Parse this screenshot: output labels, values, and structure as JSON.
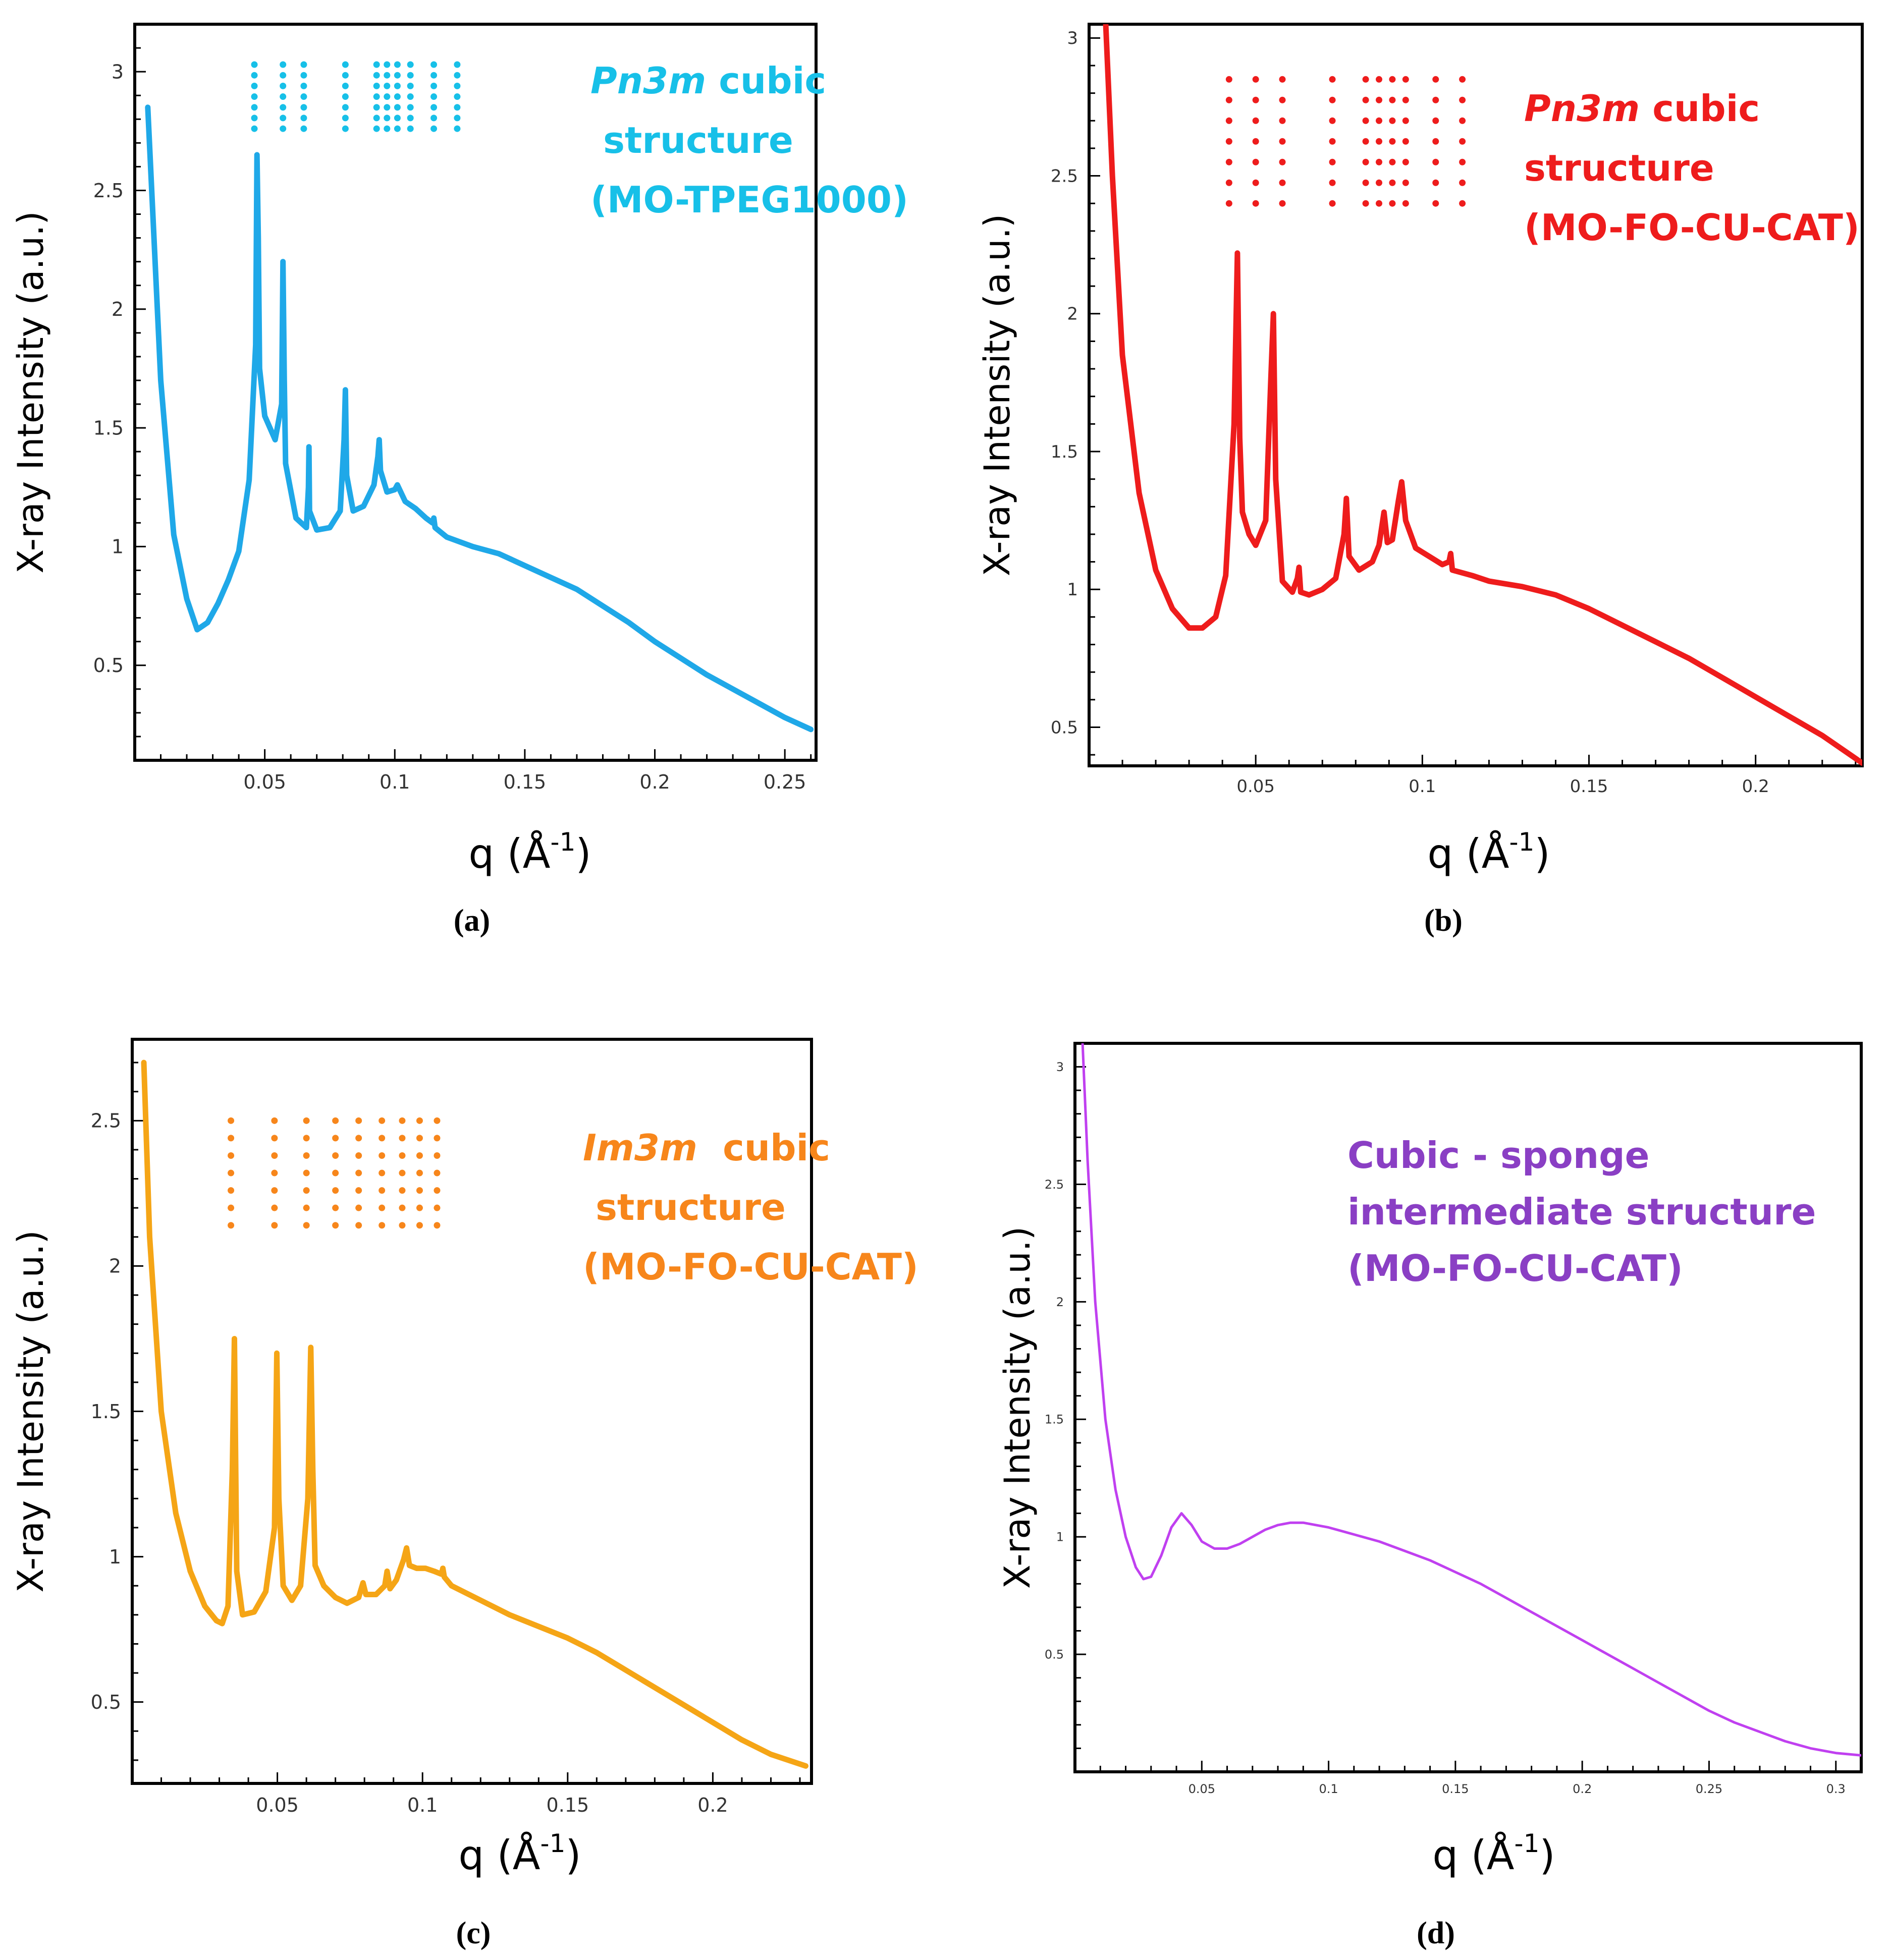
{
  "figure_title": "",
  "chart_data": [
    {
      "id": "a",
      "type": "line",
      "panel_label": "(a)",
      "xlabel": "q (Å-1)",
      "xlabel_main": "q (Å",
      "xlabel_sup": "-1",
      "xlabel_close": ")",
      "ylabel": "X-ray Intensity (a.u.)",
      "xlim": [
        0.0,
        0.262
      ],
      "ylim": [
        0.1,
        3.2
      ],
      "xticks": [
        0.05,
        0.1,
        0.15,
        0.2,
        0.25
      ],
      "xtick_labels": [
        "0.05",
        "0.1",
        "0.15",
        "0.2",
        "0.25"
      ],
      "yticks": [
        0.5,
        1,
        1.5,
        2,
        2.5,
        3
      ],
      "ytick_labels": [
        "0.5",
        "1",
        "1.5",
        "2",
        "2.5",
        "3"
      ],
      "color": "#1fa8e8",
      "annotation_color": "#17c0e8",
      "annotation_lines": [
        "Pn3m cubic",
        " structure",
        "(MO-TPEG1000)"
      ],
      "annotation_italic_word": "Pn3m",
      "dot_x": [
        0.046,
        0.057,
        0.065,
        0.081,
        0.093,
        0.097,
        0.101,
        0.106,
        0.115,
        0.124
      ],
      "dot_y": [
        3.03,
        2.985,
        2.94,
        2.895,
        2.85,
        2.805,
        2.76
      ],
      "series": [
        {
          "name": "MO-TPEG1000",
          "x": [
            0.005,
            0.01,
            0.015,
            0.02,
            0.024,
            0.028,
            0.032,
            0.036,
            0.04,
            0.044,
            0.0465,
            0.047,
            0.0475,
            0.048,
            0.05,
            0.054,
            0.0565,
            0.057,
            0.0575,
            0.058,
            0.062,
            0.066,
            0.0668,
            0.067,
            0.0672,
            0.07,
            0.075,
            0.079,
            0.0805,
            0.081,
            0.0815,
            0.084,
            0.088,
            0.092,
            0.0935,
            0.094,
            0.0945,
            0.097,
            0.1,
            0.101,
            0.104,
            0.108,
            0.112,
            0.1145,
            0.115,
            0.1155,
            0.12,
            0.13,
            0.14,
            0.15,
            0.16,
            0.17,
            0.18,
            0.19,
            0.2,
            0.21,
            0.22,
            0.23,
            0.24,
            0.25,
            0.26
          ],
          "y": [
            2.85,
            1.7,
            1.05,
            0.78,
            0.65,
            0.68,
            0.76,
            0.86,
            0.98,
            1.28,
            1.85,
            2.65,
            2.3,
            1.75,
            1.55,
            1.45,
            1.6,
            2.2,
            1.7,
            1.35,
            1.12,
            1.08,
            1.25,
            1.42,
            1.15,
            1.07,
            1.08,
            1.15,
            1.45,
            1.66,
            1.3,
            1.15,
            1.17,
            1.26,
            1.38,
            1.45,
            1.32,
            1.23,
            1.24,
            1.26,
            1.19,
            1.16,
            1.12,
            1.1,
            1.12,
            1.08,
            1.04,
            1.0,
            0.97,
            0.92,
            0.87,
            0.82,
            0.75,
            0.68,
            0.6,
            0.53,
            0.46,
            0.4,
            0.34,
            0.28,
            0.23
          ]
        }
      ]
    },
    {
      "id": "b",
      "type": "line",
      "panel_label": "(b)",
      "xlabel": "q (Å-1)",
      "xlabel_main": "q (Å",
      "xlabel_sup": "-1",
      "xlabel_close": ")",
      "ylabel": "X-ray Intensity (a.u.)",
      "xlim": [
        0.0,
        0.232
      ],
      "ylim": [
        0.36,
        3.05
      ],
      "xticks": [
        0.05,
        0.1,
        0.15,
        0.2
      ],
      "xtick_labels": [
        "0.05",
        "0.1",
        "0.15",
        "0.2"
      ],
      "yticks": [
        0.5,
        1,
        1.5,
        2,
        2.5,
        3
      ],
      "ytick_labels": [
        "0.5",
        "1",
        "1.5",
        "2",
        "2.5",
        "3"
      ],
      "color": "#ee1c1c",
      "annotation_color": "#ee1c1c",
      "annotation_lines": [
        "Pn3m cubic",
        "structure",
        "(MO-FO-CU-CAT)"
      ],
      "annotation_italic_word": "Pn3m",
      "dot_x": [
        0.042,
        0.05,
        0.058,
        0.073,
        0.083,
        0.087,
        0.091,
        0.095,
        0.104,
        0.112
      ],
      "dot_y": [
        2.85,
        2.775,
        2.7,
        2.625,
        2.55,
        2.475,
        2.4
      ],
      "series": [
        {
          "name": "MO-FO-CU-CAT (Pn3m)",
          "x": [
            0.005,
            0.007,
            0.01,
            0.015,
            0.02,
            0.025,
            0.03,
            0.034,
            0.038,
            0.041,
            0.0435,
            0.0445,
            0.0452,
            0.046,
            0.048,
            0.05,
            0.053,
            0.0545,
            0.0553,
            0.056,
            0.058,
            0.061,
            0.0625,
            0.063,
            0.0635,
            0.066,
            0.07,
            0.074,
            0.0765,
            0.0772,
            0.078,
            0.081,
            0.085,
            0.087,
            0.0885,
            0.0895,
            0.091,
            0.0928,
            0.0938,
            0.095,
            0.098,
            0.102,
            0.106,
            0.108,
            0.1085,
            0.109,
            0.115,
            0.12,
            0.13,
            0.14,
            0.15,
            0.16,
            0.17,
            0.18,
            0.19,
            0.2,
            0.21,
            0.22,
            0.232
          ],
          "y": [
            3.05,
            2.5,
            1.85,
            1.35,
            1.07,
            0.93,
            0.86,
            0.86,
            0.9,
            1.05,
            1.6,
            2.22,
            1.55,
            1.28,
            1.2,
            1.16,
            1.25,
            1.75,
            2.0,
            1.4,
            1.03,
            0.99,
            1.04,
            1.08,
            0.99,
            0.98,
            1.0,
            1.04,
            1.2,
            1.33,
            1.12,
            1.07,
            1.1,
            1.16,
            1.28,
            1.17,
            1.18,
            1.32,
            1.39,
            1.25,
            1.15,
            1.12,
            1.09,
            1.1,
            1.13,
            1.07,
            1.05,
            1.03,
            1.01,
            0.98,
            0.93,
            0.87,
            0.81,
            0.75,
            0.68,
            0.61,
            0.54,
            0.47,
            0.37
          ]
        }
      ]
    },
    {
      "id": "c",
      "type": "line",
      "panel_label": "(c)",
      "xlabel": "q (Å-1)",
      "xlabel_main": "q (Å",
      "xlabel_sup": "-1",
      "xlabel_close": ")",
      "ylabel": "X-ray Intensity (a.u.)",
      "xlim": [
        0.0,
        0.234
      ],
      "ylim": [
        0.22,
        2.78
      ],
      "xticks": [
        0.05,
        0.1,
        0.15,
        0.2
      ],
      "xtick_labels": [
        "0.05",
        "0.1",
        "0.15",
        "0.2"
      ],
      "yticks": [
        0.5,
        1,
        1.5,
        2,
        2.5
      ],
      "ytick_labels": [
        "0.5",
        "1",
        "1.5",
        "2",
        "2.5"
      ],
      "color": "#f5a516",
      "annotation_color": "#f7861b",
      "annotation_lines": [
        "Im3m  cubic",
        " structure",
        "(MO-FO-CU-CAT)"
      ],
      "annotation_italic_word": "Im3m",
      "dot_x": [
        0.034,
        0.049,
        0.06,
        0.07,
        0.078,
        0.086,
        0.093,
        0.099,
        0.105
      ],
      "dot_y": [
        2.5,
        2.44,
        2.38,
        2.32,
        2.26,
        2.2,
        2.14
      ],
      "series": [
        {
          "name": "MO-FO-CU-CAT (Im3m)",
          "x": [
            0.004,
            0.006,
            0.01,
            0.015,
            0.02,
            0.025,
            0.029,
            0.031,
            0.033,
            0.0345,
            0.0352,
            0.036,
            0.038,
            0.042,
            0.046,
            0.049,
            0.0498,
            0.0505,
            0.052,
            0.055,
            0.058,
            0.0605,
            0.0615,
            0.0622,
            0.063,
            0.066,
            0.07,
            0.074,
            0.078,
            0.0795,
            0.0805,
            0.084,
            0.087,
            0.0878,
            0.0888,
            0.091,
            0.0935,
            0.0945,
            0.0955,
            0.098,
            0.101,
            0.104,
            0.1065,
            0.107,
            0.1075,
            0.11,
            0.12,
            0.13,
            0.14,
            0.15,
            0.16,
            0.17,
            0.18,
            0.19,
            0.2,
            0.21,
            0.22,
            0.232
          ],
          "y": [
            2.7,
            2.1,
            1.5,
            1.15,
            0.95,
            0.83,
            0.78,
            0.77,
            0.83,
            1.3,
            1.75,
            0.95,
            0.8,
            0.81,
            0.88,
            1.1,
            1.7,
            1.2,
            0.9,
            0.85,
            0.9,
            1.2,
            1.72,
            1.3,
            0.97,
            0.9,
            0.86,
            0.84,
            0.86,
            0.91,
            0.87,
            0.87,
            0.9,
            0.95,
            0.89,
            0.92,
            0.99,
            1.03,
            0.97,
            0.96,
            0.96,
            0.95,
            0.94,
            0.96,
            0.93,
            0.9,
            0.85,
            0.8,
            0.76,
            0.72,
            0.67,
            0.61,
            0.55,
            0.49,
            0.43,
            0.37,
            0.32,
            0.28
          ]
        }
      ]
    },
    {
      "id": "d",
      "type": "line",
      "panel_label": "(d)",
      "xlabel": "q (Å-1)",
      "xlabel_main": "q (Å",
      "xlabel_sup": "-1",
      "xlabel_close": ")",
      "ylabel": "X-ray Intensity (a.u.)",
      "xlim": [
        0.0,
        0.31
      ],
      "ylim": [
        0.0,
        3.1
      ],
      "xticks": [
        0.05,
        0.1,
        0.15,
        0.2,
        0.25,
        0.3
      ],
      "xtick_labels": [
        "0.05",
        "0.1",
        "0.15",
        "0.2",
        "0.25",
        "0.3"
      ],
      "yticks": [
        0.5,
        1,
        1.5,
        2,
        2.5,
        3
      ],
      "ytick_labels": [
        "0.5",
        "1",
        "1.5",
        "2",
        "2.5",
        "3"
      ],
      "color": "#c040f0",
      "annotation_color": "#8a3fc4",
      "annotation_lines": [
        "Cubic - sponge",
        "intermediate structure",
        "(MO-FO-CU-CAT)"
      ],
      "annotation_italic_word": "",
      "dot_x": [],
      "dot_y": [],
      "series": [
        {
          "name": "MO-FO-CU-CAT (sponge)",
          "x": [
            0.003,
            0.005,
            0.008,
            0.012,
            0.016,
            0.02,
            0.024,
            0.027,
            0.03,
            0.034,
            0.038,
            0.042,
            0.046,
            0.05,
            0.055,
            0.06,
            0.065,
            0.07,
            0.075,
            0.08,
            0.085,
            0.09,
            0.1,
            0.11,
            0.12,
            0.13,
            0.14,
            0.15,
            0.16,
            0.17,
            0.18,
            0.19,
            0.2,
            0.21,
            0.22,
            0.23,
            0.24,
            0.25,
            0.26,
            0.27,
            0.28,
            0.29,
            0.3,
            0.31
          ],
          "y": [
            3.1,
            2.6,
            2.0,
            1.5,
            1.2,
            1.0,
            0.87,
            0.82,
            0.83,
            0.92,
            1.04,
            1.1,
            1.05,
            0.98,
            0.95,
            0.95,
            0.97,
            1.0,
            1.03,
            1.05,
            1.06,
            1.06,
            1.04,
            1.01,
            0.98,
            0.94,
            0.9,
            0.85,
            0.8,
            0.74,
            0.68,
            0.62,
            0.56,
            0.5,
            0.44,
            0.38,
            0.32,
            0.26,
            0.21,
            0.17,
            0.13,
            0.1,
            0.08,
            0.07
          ]
        }
      ]
    }
  ]
}
